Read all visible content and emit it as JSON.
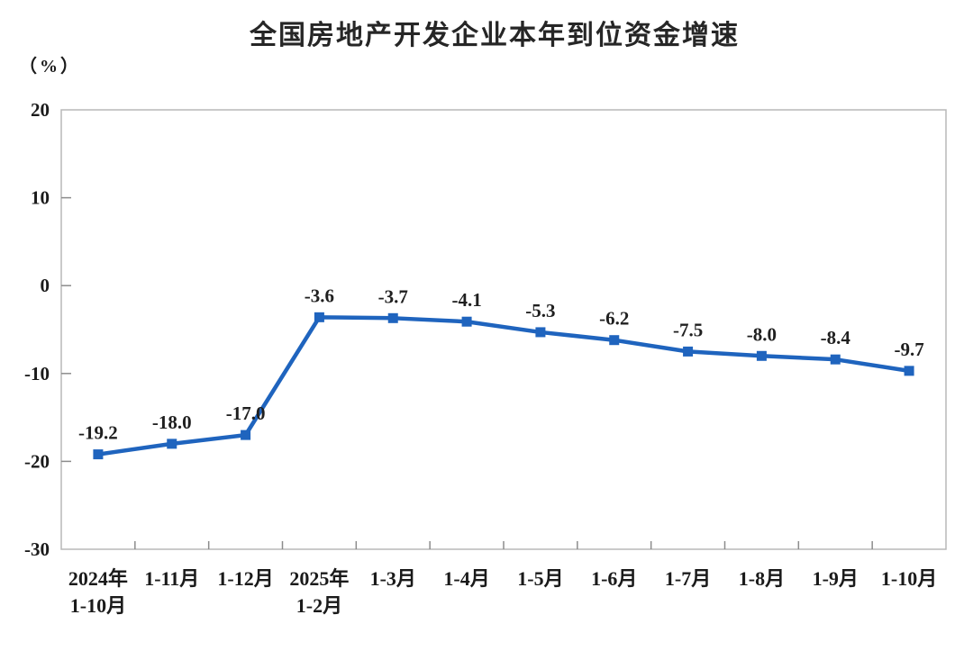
{
  "chart_data": {
    "type": "line",
    "title": "全国房地产开发企业本年到位资金增速",
    "unit_label": "（%）",
    "categories": [
      [
        "2024年",
        "1-10月"
      ],
      [
        "1-11月"
      ],
      [
        "1-12月"
      ],
      [
        "2025年",
        "1-2月"
      ],
      [
        "1-3月"
      ],
      [
        "1-4月"
      ],
      [
        "1-5月"
      ],
      [
        "1-6月"
      ],
      [
        "1-7月"
      ],
      [
        "1-8月"
      ],
      [
        "1-9月"
      ],
      [
        "1-10月"
      ]
    ],
    "values": [
      -19.2,
      -18.0,
      -17.0,
      -3.6,
      -3.7,
      -4.1,
      -5.3,
      -6.2,
      -7.5,
      -8.0,
      -8.4,
      -9.7
    ],
    "data_labels": [
      "-19.2",
      "-18.0",
      "-17.0",
      "-3.6",
      "-3.7",
      "-4.1",
      "-5.3",
      "-6.2",
      "-7.5",
      "-8.0",
      "-8.4",
      "-9.7"
    ],
    "y_ticks": [
      20,
      10,
      0,
      -10,
      -20,
      -30
    ],
    "ylim": [
      -30,
      20
    ],
    "grid": false,
    "legend": "none",
    "marker": "square",
    "colors": {
      "line": "#1F64BE",
      "marker": "#1F64BE",
      "plot_border": "#b8b8b8",
      "tick": "#8c8c8c",
      "axis_text": "#1a1a1a",
      "data_label_text": "#1f1f1f",
      "background": "#ffffff"
    }
  }
}
